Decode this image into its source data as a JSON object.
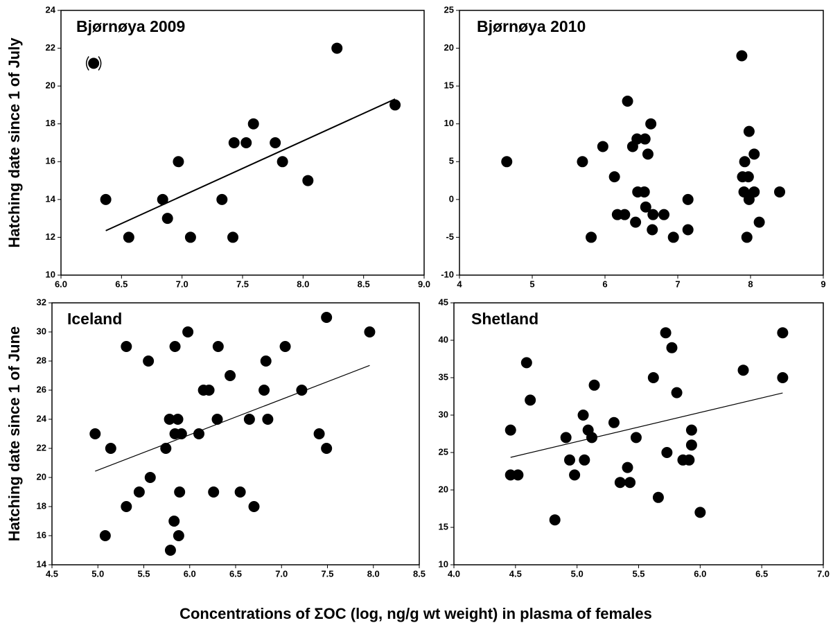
{
  "x_label": "Concentrations of ΣOC (log, ng/g wt weight) in plasma of females",
  "chart_data": [
    {
      "type": "scatter",
      "title": "Bjørnøya 2009",
      "y_label": "Hatching date since 1 of July",
      "xlim": [
        6.0,
        9.0
      ],
      "ylim": [
        10,
        24
      ],
      "xticks": [
        {
          "value": 6.0,
          "label": "6.0"
        },
        {
          "value": 6.5,
          "label": "6.5"
        },
        {
          "value": 7.0,
          "label": "7.0"
        },
        {
          "value": 7.5,
          "label": "7.5"
        },
        {
          "value": 8.0,
          "label": "8.0"
        },
        {
          "value": 8.5,
          "label": "8.5"
        },
        {
          "value": 9.0,
          "label": "9.0"
        }
      ],
      "yticks": [
        10,
        12,
        14,
        16,
        18,
        20,
        22,
        24
      ],
      "x": [
        6.37,
        6.56,
        6.84,
        6.88,
        6.97,
        7.07,
        7.33,
        7.42,
        7.43,
        7.53,
        7.59,
        7.77,
        7.83,
        8.04,
        8.28,
        8.76
      ],
      "y": [
        14,
        12,
        14,
        13,
        16,
        12,
        14,
        12,
        17,
        17,
        18,
        17,
        16,
        15,
        22,
        19
      ],
      "outlier": {
        "x": 6.27,
        "y": 21.2
      },
      "trend": {
        "x": [
          6.37,
          8.76
        ],
        "y": [
          12.35,
          19.31
        ]
      }
    },
    {
      "type": "scatter",
      "title": "Bjørnøya 2010",
      "xlim": [
        4,
        9
      ],
      "ylim": [
        -10,
        25
      ],
      "xticks": [
        4,
        5,
        6,
        7,
        8,
        9
      ],
      "yticks": [
        -10,
        -5,
        0,
        5,
        10,
        15,
        20,
        25
      ],
      "x": [
        4.65,
        5.69,
        5.81,
        5.97,
        6.13,
        6.17,
        6.27,
        6.31,
        6.38,
        6.42,
        6.44,
        6.45,
        6.54,
        6.55,
        6.56,
        6.59,
        6.63,
        6.65,
        6.66,
        6.81,
        6.94,
        7.14,
        7.14,
        7.88,
        7.89,
        7.91,
        7.92,
        7.95,
        7.97,
        7.98,
        7.98,
        8.05,
        8.05,
        8.12,
        8.4
      ],
      "y": [
        5,
        5,
        -5,
        7,
        3,
        -2,
        -2,
        13,
        7,
        -3,
        8,
        1,
        1,
        8,
        -1,
        6,
        10,
        -4,
        -2,
        -2,
        -5,
        0,
        -4,
        19,
        3,
        1,
        5,
        -5,
        3,
        9,
        0,
        6,
        1,
        -3,
        1
      ]
    },
    {
      "type": "scatter",
      "title": "Iceland",
      "y_label": "Hatching date since 1 of June",
      "xlim": [
        4.5,
        8.5
      ],
      "ylim": [
        14,
        32
      ],
      "xticks": [
        4.5,
        {
          "value": 5.0,
          "label": "5.0"
        },
        5.5,
        {
          "value": 6.0,
          "label": "6.0"
        },
        6.5,
        {
          "value": 7.0,
          "label": "7.0"
        },
        7.5,
        {
          "value": 8.0,
          "label": "8.0"
        },
        8.5
      ],
      "yticks": [
        14,
        16,
        18,
        20,
        22,
        24,
        26,
        28,
        30,
        32
      ],
      "x": [
        4.97,
        5.08,
        5.14,
        5.31,
        5.31,
        5.45,
        5.55,
        5.57,
        5.74,
        5.78,
        5.79,
        5.83,
        5.84,
        5.84,
        5.87,
        5.88,
        5.89,
        5.91,
        5.98,
        6.1,
        6.15,
        6.21,
        6.26,
        6.3,
        6.31,
        6.44,
        6.55,
        6.65,
        6.7,
        6.81,
        6.83,
        6.85,
        7.04,
        7.22,
        7.41,
        7.49,
        7.49,
        7.96
      ],
      "y": [
        23,
        16,
        22,
        18,
        29,
        19,
        28,
        20,
        22,
        24,
        15,
        17,
        29,
        23,
        24,
        16,
        19,
        23,
        30,
        23,
        26,
        26,
        19,
        24,
        29,
        27,
        19,
        24,
        18,
        26,
        28,
        24,
        29,
        26,
        23,
        22,
        31,
        30
      ],
      "trend": {
        "x": [
          4.97,
          7.96
        ],
        "y": [
          20.43,
          27.7
        ]
      }
    },
    {
      "type": "scatter",
      "title": "Shetland",
      "xlim": [
        4.0,
        7.0
      ],
      "ylim": [
        10,
        45
      ],
      "xticks": [
        {
          "value": 4.0,
          "label": "4.0"
        },
        4.5,
        {
          "value": 5.0,
          "label": "5.0"
        },
        5.5,
        {
          "value": 6.0,
          "label": "6.0"
        },
        6.5,
        {
          "value": 7.0,
          "label": "7.0"
        }
      ],
      "yticks": [
        10,
        15,
        20,
        25,
        30,
        35,
        40,
        45
      ],
      "x": [
        4.46,
        4.46,
        4.52,
        4.59,
        4.62,
        4.82,
        4.91,
        4.94,
        4.98,
        5.05,
        5.06,
        5.09,
        5.12,
        5.14,
        5.3,
        5.35,
        5.41,
        5.43,
        5.48,
        5.62,
        5.66,
        5.72,
        5.73,
        5.77,
        5.81,
        5.86,
        5.91,
        5.93,
        5.93,
        6.0,
        6.35,
        6.67,
        6.67
      ],
      "y": [
        28,
        22,
        22,
        37,
        32,
        16,
        27,
        24,
        22,
        30,
        24,
        28,
        27,
        34,
        29,
        21,
        23,
        21,
        27,
        35,
        19,
        41,
        25,
        39,
        33,
        24,
        24,
        28,
        26,
        17,
        36,
        35,
        41
      ],
      "trend": {
        "x": [
          4.46,
          6.67
        ],
        "y": [
          24.35,
          32.96
        ]
      }
    }
  ]
}
